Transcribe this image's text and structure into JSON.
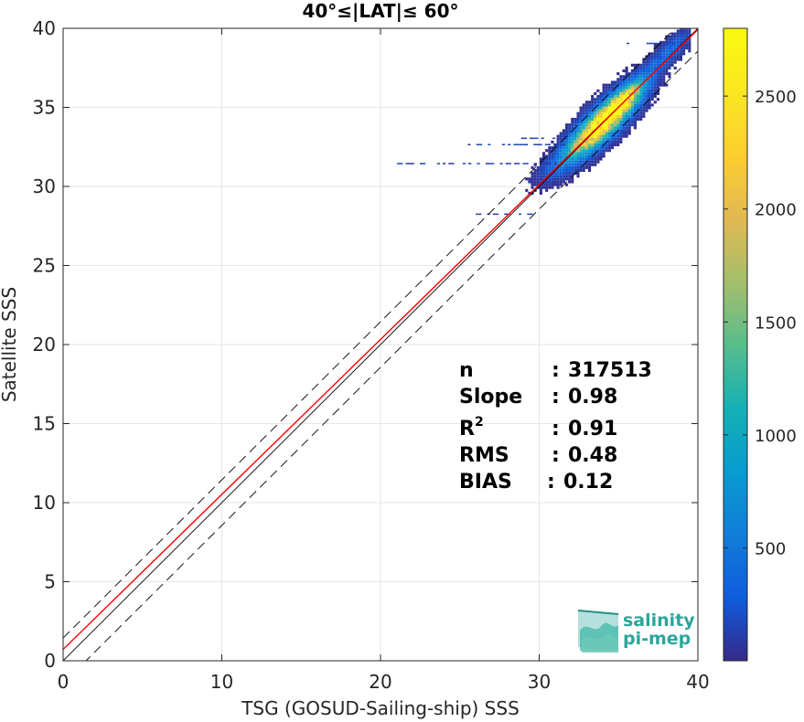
{
  "chart_data": {
    "type": "heatmap",
    "title": "40°≤|LAT|≤ 60°",
    "xlabel": "TSG (GOSUD-Sailing-ship) SSS",
    "ylabel": "Satellite SSS",
    "xlim": [
      0,
      40
    ],
    "ylim": [
      0,
      40
    ],
    "xticks": [
      "0",
      "10",
      "20",
      "30",
      "40"
    ],
    "yticks": [
      "0",
      "5",
      "10",
      "15",
      "20",
      "25",
      "30",
      "35",
      "40"
    ],
    "grid": true,
    "colorbar": {
      "range": [
        0,
        2800
      ],
      "ticks": [
        "500",
        "1000",
        "1500",
        "2000",
        "2500"
      ],
      "colormap": "parula"
    },
    "reference_lines": {
      "identity": {
        "slope": 1.0,
        "intercept": 0.0,
        "color": "#000000",
        "style": "solid"
      },
      "fit": {
        "slope": 0.98,
        "intercept": 0.72,
        "color": "#ff0000",
        "style": "solid"
      },
      "offset_upper": {
        "slope": 1.0,
        "intercept": 1.44,
        "color": "#000000",
        "style": "dashed"
      },
      "offset_lower": {
        "slope": 1.0,
        "intercept": -1.44,
        "color": "#000000",
        "style": "dashed"
      }
    },
    "density_clusters": [
      {
        "x": 34.0,
        "y": 34.0,
        "sx": 1.2,
        "sy": 0.9,
        "peak": 2800
      },
      {
        "x": 35.3,
        "y": 35.4,
        "sx": 0.7,
        "sy": 0.6,
        "peak": 1500
      },
      {
        "x": 32.5,
        "y": 32.6,
        "sx": 0.9,
        "sy": 0.7,
        "peak": 600
      },
      {
        "x": 38.0,
        "y": 38.3,
        "sx": 0.9,
        "sy": 0.6,
        "peak": 350
      },
      {
        "x": 30.5,
        "y": 31.0,
        "sx": 0.6,
        "sy": 0.6,
        "peak": 120
      }
    ],
    "stats": {
      "n": "317513",
      "slope": "0.98",
      "r2": "0.91",
      "rms": "0.48",
      "bias": "0.12"
    }
  },
  "stats_labels": {
    "n": "n",
    "slope": "Slope",
    "r2_base": "R",
    "r2_sup": "2",
    "rms": "RMS",
    "bias": "BIAS"
  },
  "logo": {
    "line1": "salinity",
    "line2": "pi-mep"
  }
}
